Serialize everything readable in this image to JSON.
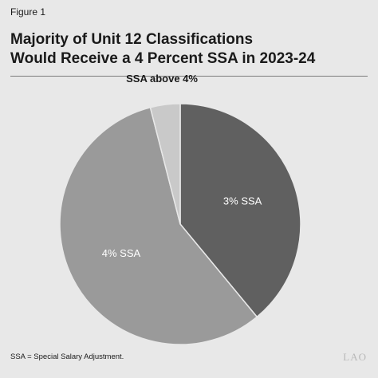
{
  "figure_label": "Figure 1",
  "title_lines": [
    "Majority of Unit 12 Classifications",
    "Would Receive a 4 Percent SSA in 2023-24"
  ],
  "footnote": "SSA = Special Salary Adjustment.",
  "logo_text": "LAO",
  "chart_data": {
    "type": "pie",
    "title": "Majority of Unit 12 Classifications Would Receive a 4 Percent SSA in 2023-24",
    "slices": [
      {
        "label": "3% SSA",
        "value": 39,
        "color": "#606060"
      },
      {
        "label": "4% SSA",
        "value": 57,
        "color": "#9a9a9a"
      },
      {
        "label": "SSA above 4%",
        "value": 4,
        "color": "#c9c9c9"
      }
    ],
    "start_angle_deg": 0,
    "direction": "clockwise",
    "label_colors": {
      "inside": "#ffffff",
      "outside": "#1a1a1a"
    }
  }
}
